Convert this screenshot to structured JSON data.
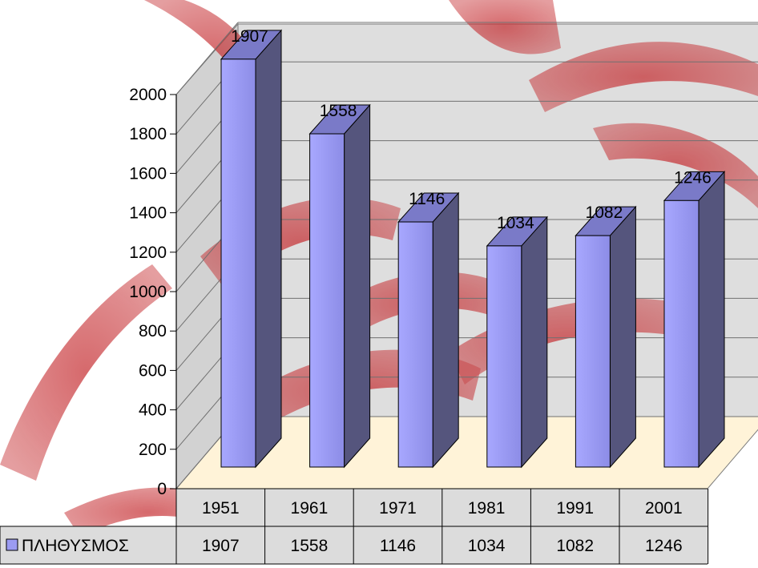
{
  "chart_data": {
    "type": "bar",
    "categories": [
      "1951",
      "1961",
      "1971",
      "1981",
      "1991",
      "2001"
    ],
    "series": [
      {
        "name": "ΠΛΗΘΥΣΜΟΣ",
        "values": [
          1907,
          1558,
          1146,
          1034,
          1082,
          1246
        ]
      }
    ],
    "data_labels": [
      "1907",
      "1558",
      "1146",
      "1034",
      "1082",
      "1246"
    ],
    "ylim": [
      0,
      2000
    ],
    "yticks": [
      "0",
      "200",
      "400",
      "600",
      "800",
      "1000",
      "1200",
      "1400",
      "1600",
      "1800",
      "2000"
    ],
    "grid": true,
    "legend": "data-table",
    "three_d": true
  },
  "colors": {
    "bar_front": "#9b9bf2",
    "bar_side": "#55557d",
    "bar_top": "#7a7ac8",
    "floor": "#fff3d8",
    "walls": "#dcdcdc",
    "watermark": "#b81418"
  }
}
